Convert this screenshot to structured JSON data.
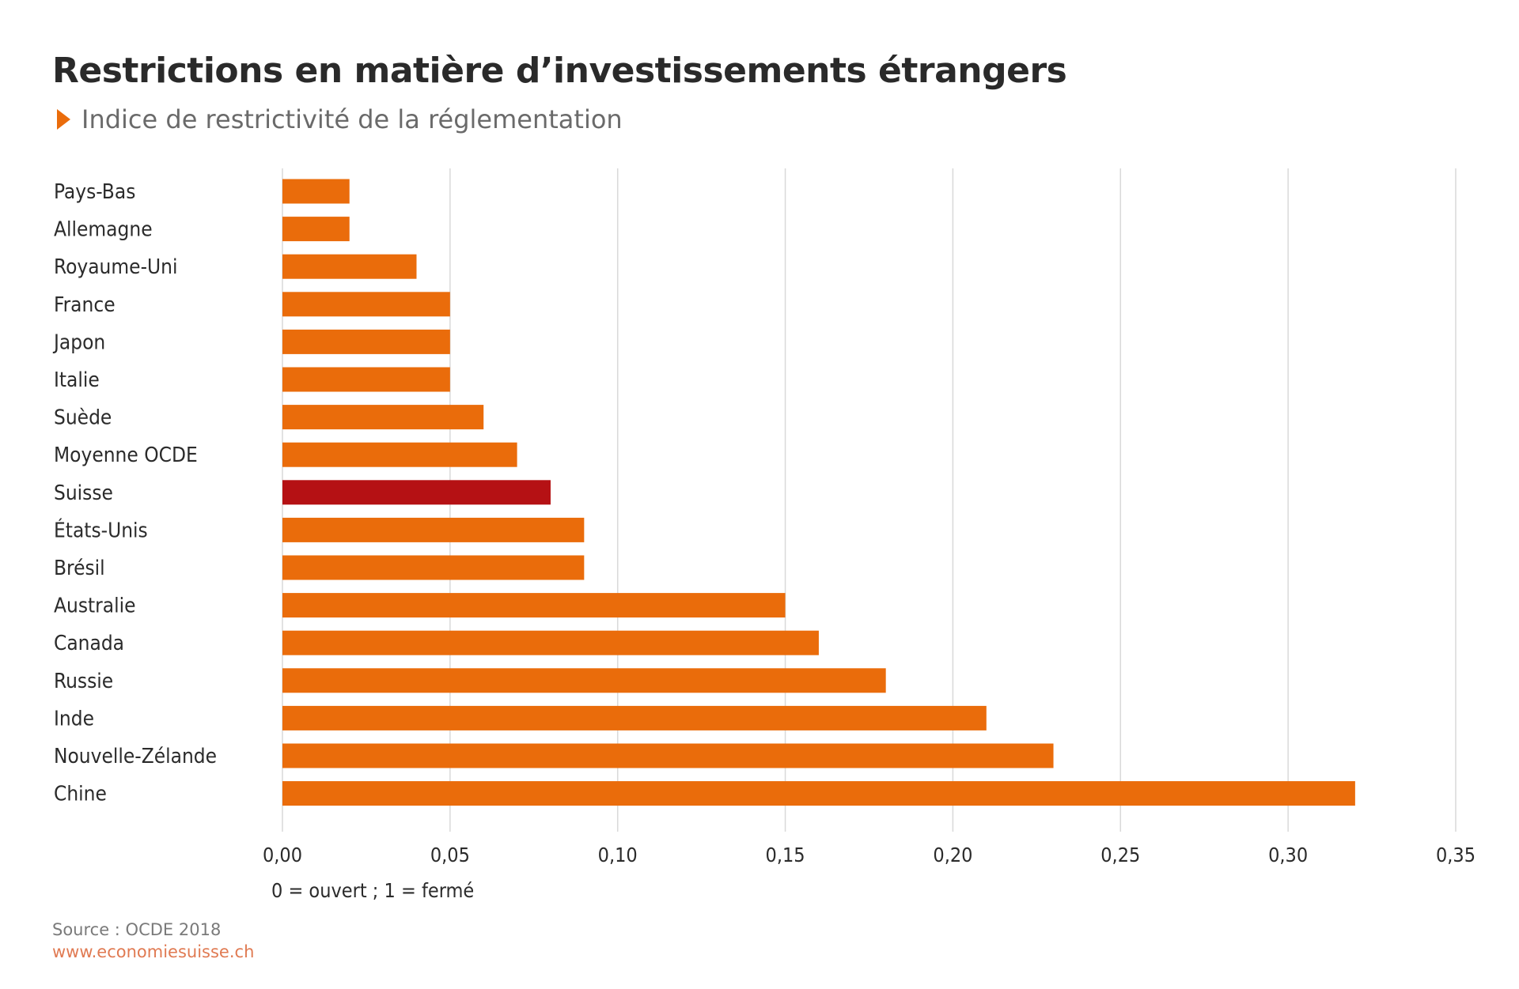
{
  "header": {
    "title": "Restrictions en matière d’investissements étrangers",
    "subtitle": "Indice de restrictivité de la réglementation"
  },
  "footer": {
    "note": "0 = ouvert ; 1 = fermé",
    "source": "Source : OCDE 2018",
    "url": "www.economiesuisse.ch"
  },
  "colors": {
    "bar": "#ea6c0b",
    "highlight": "#b51114",
    "grid": "#d9d9d9",
    "accent": "#ea6c0b"
  },
  "chart_data": {
    "type": "bar",
    "orientation": "horizontal",
    "title": "Restrictions en matière d’investissements étrangers",
    "subtitle": "Indice de restrictivité de la réglementation",
    "categories": [
      "Pays-Bas",
      "Allemagne",
      "Royaume-Uni",
      "France",
      "Japon",
      "Italie",
      "Suède",
      "Moyenne OCDE",
      "Suisse",
      "États-Unis",
      "Brésil",
      "Australie",
      "Canada",
      "Russie",
      "Inde",
      "Nouvelle-Zélande",
      "Chine"
    ],
    "values": [
      0.02,
      0.02,
      0.04,
      0.05,
      0.05,
      0.05,
      0.06,
      0.07,
      0.08,
      0.09,
      0.09,
      0.15,
      0.16,
      0.18,
      0.21,
      0.23,
      0.32
    ],
    "highlight": "Suisse",
    "xlim": [
      0,
      0.35
    ],
    "xticks": [
      "0,00",
      "0,05",
      "0,10",
      "0,15",
      "0,20",
      "0,25",
      "0,30",
      "0,35"
    ],
    "xlabel": "0 = ouvert ; 1 = fermé",
    "ylabel": "",
    "grid": true
  }
}
